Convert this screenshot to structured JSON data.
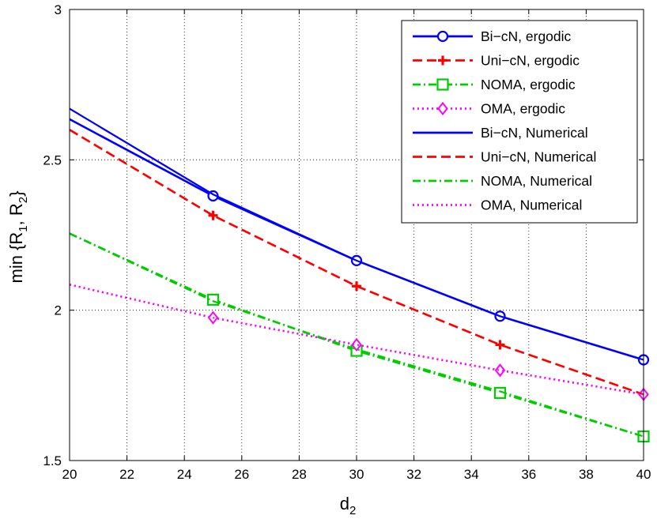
{
  "chart_data": {
    "type": "line",
    "title": "",
    "xlabel": {
      "base": "d",
      "sub": "2"
    },
    "ylabel": {
      "pre": "min {R",
      "sub1": "1",
      "mid": ", R",
      "sub2": "2",
      "post": "}"
    },
    "xlim": [
      20,
      40
    ],
    "ylim": [
      1.5,
      3
    ],
    "xticks": [
      20,
      22,
      24,
      26,
      28,
      30,
      32,
      34,
      36,
      38,
      40
    ],
    "yticks": [
      1.5,
      2,
      2.5,
      3
    ],
    "ytick_labels": [
      "1.5",
      "2",
      "2.5",
      "3"
    ],
    "grid": true,
    "legend_position": "top-right",
    "series": [
      {
        "name": "Bi−cN, ergodic",
        "color": "#0000ff",
        "dash": "solid",
        "marker": "circle",
        "x": [
          20,
          25,
          30,
          35,
          40
        ],
        "y": [
          2.635,
          2.38,
          2.165,
          1.98,
          1.835
        ],
        "marker_x": [
          25,
          30,
          35,
          40
        ]
      },
      {
        "name": "Uni−cN, ergodic",
        "color": "#ff0000",
        "dash": "dashed",
        "marker": "plus",
        "x": [
          20,
          25,
          30,
          35,
          40
        ],
        "y": [
          2.6,
          2.315,
          2.08,
          1.885,
          1.72
        ],
        "marker_x": [
          25,
          30,
          35,
          40
        ]
      },
      {
        "name": "NOMA, ergodic",
        "color": "#00cc00",
        "dash": "dashdot",
        "marker": "square",
        "x": [
          20,
          25,
          30,
          35,
          40
        ],
        "y": [
          2.255,
          2.035,
          1.865,
          1.725,
          1.58
        ],
        "marker_x": [
          25,
          30,
          35,
          40
        ]
      },
      {
        "name": "OMA, ergodic",
        "color": "#ff00ff",
        "dash": "dotted",
        "marker": "diamond",
        "x": [
          20,
          25,
          30,
          35,
          40
        ],
        "y": [
          2.085,
          1.975,
          1.885,
          1.8,
          1.72
        ],
        "marker_x": [
          25,
          30,
          35,
          40
        ]
      },
      {
        "name": "Bi−cN, Numerical",
        "color": "#0000ff",
        "dash": "solid",
        "marker": "none",
        "x": [
          20,
          25,
          30,
          35,
          40
        ],
        "y": [
          2.67,
          2.385,
          2.165,
          1.98,
          1.835
        ],
        "marker_x": []
      },
      {
        "name": "Uni−cN, Numerical",
        "color": "#ff0000",
        "dash": "dashed",
        "marker": "none",
        "x": [
          20,
          25,
          30,
          35,
          40
        ],
        "y": [
          2.6,
          2.315,
          2.08,
          1.885,
          1.72
        ],
        "marker_x": []
      },
      {
        "name": "NOMA, Numerical",
        "color": "#00cc00",
        "dash": "dashdot",
        "marker": "none",
        "x": [
          20,
          25,
          30,
          35,
          40
        ],
        "y": [
          2.255,
          2.03,
          1.87,
          1.73,
          1.58
        ],
        "marker_x": []
      },
      {
        "name": "OMA, Numerical",
        "color": "#ff00ff",
        "dash": "dotted",
        "marker": "none",
        "x": [
          20,
          25,
          30,
          35,
          40
        ],
        "y": [
          2.085,
          1.975,
          1.885,
          1.8,
          1.72
        ],
        "marker_x": []
      }
    ]
  }
}
